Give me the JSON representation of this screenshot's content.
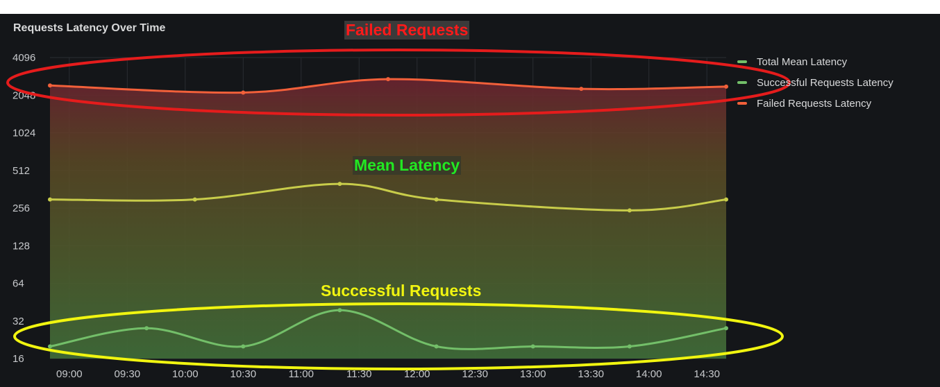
{
  "panel": {
    "title": "Requests Latency Over Time"
  },
  "colors": {
    "background": "#141619",
    "total_mean": "#73bf69",
    "successful": "#73bf69",
    "failed": "#f2603a",
    "mean_curve": "#c8cc4a",
    "annotation_failed": "#ff1a1a",
    "annotation_mean": "#22e822",
    "annotation_success": "#f1f510"
  },
  "annotations": {
    "failed": "Failed Requests",
    "mean": "Mean Latency",
    "successful": "Successful  Requests"
  },
  "chart_data": {
    "type": "line",
    "y_scale": "log2",
    "ylim": [
      16,
      4096
    ],
    "y_ticks": [
      "16",
      "32",
      "64",
      "128",
      "256",
      "512",
      "1024",
      "2048",
      "4096"
    ],
    "x_ticks": [
      "09:00",
      "09:30",
      "10:00",
      "10:30",
      "11:00",
      "11:30",
      "12:00",
      "12:30",
      "13:00",
      "13:30",
      "14:00",
      "14:30"
    ],
    "grid": true,
    "legend_position": "right",
    "x": [
      "08:50",
      "09:15",
      "09:40",
      "10:05",
      "10:30",
      "10:55",
      "11:20",
      "11:45",
      "12:10",
      "12:35",
      "13:00",
      "13:25",
      "13:50",
      "14:15",
      "14:40"
    ],
    "series": [
      {
        "name": "Total Mean Latency",
        "color": "#73bf69",
        "points": [
          [
            0,
            300
          ],
          [
            3,
            300
          ],
          [
            6,
            400
          ],
          [
            8,
            300
          ],
          [
            12,
            245
          ],
          [
            14,
            300
          ]
        ]
      },
      {
        "name": "Successful Requests Latency",
        "color": "#73bf69",
        "points": [
          [
            0,
            20
          ],
          [
            2,
            28
          ],
          [
            4,
            20
          ],
          [
            6,
            39
          ],
          [
            8,
            20
          ],
          [
            10,
            20
          ],
          [
            12,
            20
          ],
          [
            14,
            28
          ]
        ]
      },
      {
        "name": "Failed Requests Latency",
        "color": "#f2603a",
        "points": [
          [
            0,
            2450
          ],
          [
            4,
            2150
          ],
          [
            7,
            2750
          ],
          [
            11,
            2300
          ],
          [
            14,
            2400
          ]
        ]
      }
    ]
  }
}
